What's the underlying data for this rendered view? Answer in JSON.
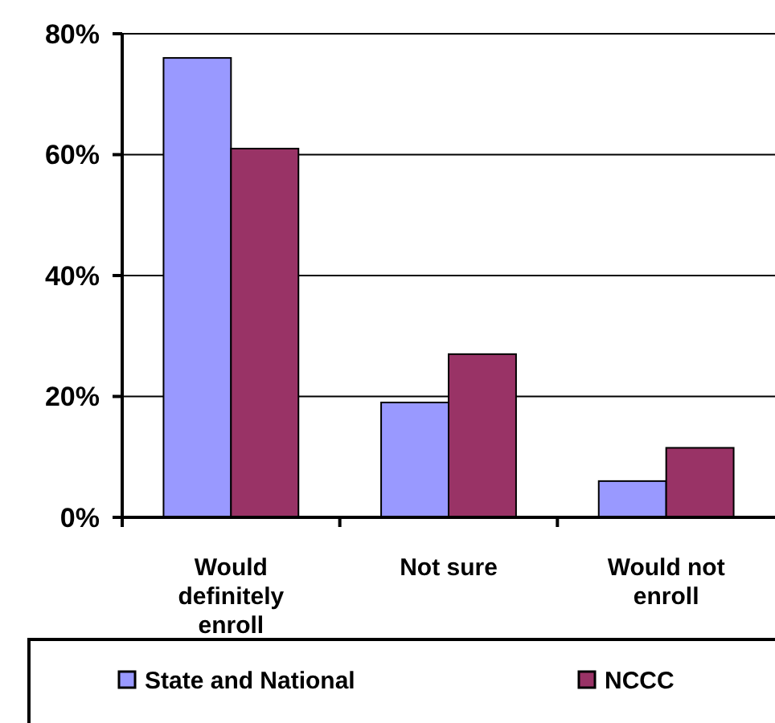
{
  "chart_data": {
    "type": "bar",
    "categories": [
      "Would definitely enroll",
      "Not sure",
      "Would not enroll"
    ],
    "series": [
      {
        "name": "State and National",
        "color": "#9999ff",
        "values": [
          76,
          19,
          6
        ]
      },
      {
        "name": "NCCC",
        "color": "#993366",
        "values": [
          61,
          27,
          11.5
        ]
      }
    ],
    "ylim": [
      0,
      80
    ],
    "yticks": [
      {
        "value": 0,
        "label": "0%"
      },
      {
        "value": 20,
        "label": "20%"
      },
      {
        "value": 40,
        "label": "40%"
      },
      {
        "value": 60,
        "label": "60%"
      },
      {
        "value": 80,
        "label": "80%"
      }
    ],
    "grid": "y",
    "legend": "bottom"
  }
}
